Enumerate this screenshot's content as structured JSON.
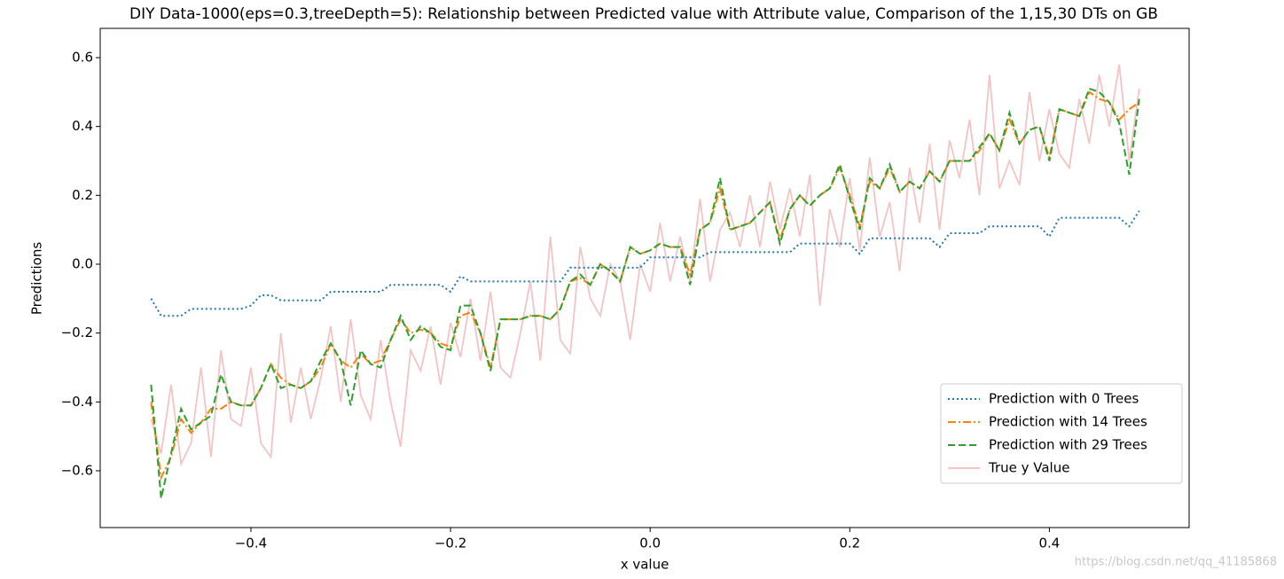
{
  "chart_data": {
    "type": "line",
    "title": "DIY Data-1000(eps=0.3,treeDepth=5): Relationship between Predicted value with Attribute value, Comparison of the 1,15,30 DTs on GB",
    "xlabel": "x value",
    "ylabel": "Predictions",
    "watermark": "https://blog.csdn.net/qq_41185868",
    "legend": "lower right",
    "xlim": [
      -0.551,
      0.54
    ],
    "ylim": [
      -0.765,
      0.685
    ],
    "xticks": [
      {
        "value": -0.4,
        "label": "−0.4"
      },
      {
        "value": -0.2,
        "label": "−0.2"
      },
      {
        "value": 0.0,
        "label": "0.0"
      },
      0.2,
      0.4
    ],
    "yticks": [
      {
        "value": -0.6,
        "label": "−0.6"
      },
      {
        "value": -0.4,
        "label": "−0.4"
      },
      {
        "value": -0.2,
        "label": "−0.2"
      },
      {
        "value": 0.0,
        "label": "0.0"
      },
      0.2,
      0.4,
      0.6
    ],
    "x": [
      -0.5,
      -0.49,
      -0.48,
      -0.47,
      -0.46,
      -0.45,
      -0.44,
      -0.43,
      -0.42,
      -0.41,
      -0.4,
      -0.39,
      -0.38,
      -0.37,
      -0.36,
      -0.35,
      -0.34,
      -0.33,
      -0.32,
      -0.31,
      -0.3,
      -0.29,
      -0.28,
      -0.27,
      -0.26,
      -0.25,
      -0.24,
      -0.23,
      -0.22,
      -0.21,
      -0.2,
      -0.19,
      -0.18,
      -0.17,
      -0.16,
      -0.15,
      -0.14,
      -0.13,
      -0.12,
      -0.11,
      -0.1,
      -0.09,
      -0.08,
      -0.07,
      -0.06,
      -0.05,
      -0.04,
      -0.03,
      -0.02,
      -0.01,
      0.0,
      0.01,
      0.02,
      0.03,
      0.04,
      0.05,
      0.06,
      0.07,
      0.08,
      0.09,
      0.1,
      0.11,
      0.12,
      0.13,
      0.14,
      0.15,
      0.16,
      0.17,
      0.18,
      0.19,
      0.2,
      0.21,
      0.22,
      0.23,
      0.24,
      0.25,
      0.26,
      0.27,
      0.28,
      0.29,
      0.3,
      0.31,
      0.32,
      0.33,
      0.34,
      0.35,
      0.36,
      0.37,
      0.38,
      0.39,
      0.4,
      0.41,
      0.42,
      0.43,
      0.44,
      0.45,
      0.46,
      0.47,
      0.48,
      0.49
    ],
    "series": [
      {
        "name": "Prediction with 0 Trees",
        "color": "#1f77b4",
        "linestyle": "dotted",
        "values": [
          -0.1,
          -0.15,
          -0.15,
          -0.15,
          -0.13,
          -0.13,
          -0.13,
          -0.13,
          -0.13,
          -0.13,
          -0.12,
          -0.09,
          -0.09,
          -0.105,
          -0.105,
          -0.105,
          -0.105,
          -0.105,
          -0.08,
          -0.08,
          -0.08,
          -0.08,
          -0.08,
          -0.08,
          -0.06,
          -0.06,
          -0.06,
          -0.06,
          -0.06,
          -0.06,
          -0.08,
          -0.035,
          -0.05,
          -0.05,
          -0.05,
          -0.05,
          -0.05,
          -0.05,
          -0.05,
          -0.05,
          -0.05,
          -0.05,
          -0.01,
          -0.01,
          -0.01,
          -0.01,
          -0.01,
          -0.01,
          -0.01,
          -0.01,
          0.02,
          0.02,
          0.02,
          0.02,
          0.02,
          0.02,
          0.035,
          0.035,
          0.035,
          0.035,
          0.035,
          0.035,
          0.035,
          0.035,
          0.035,
          0.06,
          0.06,
          0.06,
          0.06,
          0.06,
          0.06,
          0.03,
          0.075,
          0.075,
          0.075,
          0.075,
          0.075,
          0.075,
          0.075,
          0.05,
          0.09,
          0.09,
          0.09,
          0.09,
          0.11,
          0.11,
          0.11,
          0.11,
          0.11,
          0.11,
          0.08,
          0.135,
          0.135,
          0.135,
          0.135,
          0.135,
          0.135,
          0.135,
          0.11,
          0.155
        ]
      },
      {
        "name": "Prediction with 14 Trees",
        "color": "#ff7f0e",
        "linestyle": "dashdot",
        "values": [
          -0.4,
          -0.62,
          -0.56,
          -0.45,
          -0.49,
          -0.46,
          -0.42,
          -0.42,
          -0.4,
          -0.41,
          -0.41,
          -0.36,
          -0.29,
          -0.33,
          -0.35,
          -0.36,
          -0.34,
          -0.3,
          -0.23,
          -0.28,
          -0.3,
          -0.26,
          -0.29,
          -0.28,
          -0.22,
          -0.16,
          -0.2,
          -0.19,
          -0.2,
          -0.23,
          -0.24,
          -0.15,
          -0.14,
          -0.2,
          -0.3,
          -0.16,
          -0.16,
          -0.16,
          -0.15,
          -0.15,
          -0.16,
          -0.13,
          -0.05,
          -0.04,
          -0.06,
          0.0,
          -0.02,
          -0.05,
          0.05,
          0.03,
          0.04,
          0.06,
          0.05,
          0.05,
          -0.03,
          0.1,
          0.12,
          0.22,
          0.1,
          0.11,
          0.12,
          0.15,
          0.18,
          0.07,
          0.16,
          0.2,
          0.17,
          0.2,
          0.22,
          0.28,
          0.2,
          0.11,
          0.24,
          0.22,
          0.28,
          0.21,
          0.24,
          0.22,
          0.27,
          0.24,
          0.3,
          0.3,
          0.3,
          0.33,
          0.38,
          0.33,
          0.42,
          0.35,
          0.39,
          0.4,
          0.31,
          0.45,
          0.44,
          0.43,
          0.5,
          0.48,
          0.47,
          0.42,
          0.45,
          0.47
        ]
      },
      {
        "name": "Prediction with 29 Trees",
        "color": "#2ca02c",
        "linestyle": "dashed",
        "values": [
          -0.35,
          -0.68,
          -0.55,
          -0.42,
          -0.48,
          -0.46,
          -0.44,
          -0.32,
          -0.4,
          -0.41,
          -0.41,
          -0.36,
          -0.29,
          -0.36,
          -0.35,
          -0.36,
          -0.34,
          -0.28,
          -0.23,
          -0.28,
          -0.41,
          -0.25,
          -0.29,
          -0.3,
          -0.22,
          -0.15,
          -0.22,
          -0.18,
          -0.2,
          -0.24,
          -0.25,
          -0.12,
          -0.12,
          -0.2,
          -0.31,
          -0.16,
          -0.16,
          -0.16,
          -0.15,
          -0.15,
          -0.16,
          -0.13,
          -0.05,
          -0.03,
          -0.06,
          0.0,
          -0.02,
          -0.05,
          0.05,
          0.03,
          0.04,
          0.06,
          0.05,
          0.05,
          -0.06,
          0.1,
          0.12,
          0.25,
          0.1,
          0.11,
          0.12,
          0.15,
          0.18,
          0.06,
          0.16,
          0.2,
          0.17,
          0.2,
          0.22,
          0.29,
          0.19,
          0.1,
          0.25,
          0.22,
          0.29,
          0.21,
          0.24,
          0.22,
          0.27,
          0.24,
          0.3,
          0.3,
          0.3,
          0.34,
          0.38,
          0.33,
          0.44,
          0.35,
          0.39,
          0.4,
          0.3,
          0.45,
          0.44,
          0.43,
          0.51,
          0.5,
          0.47,
          0.41,
          0.26,
          0.48
        ]
      },
      {
        "name": "True y Value",
        "color": "#f4c4c4",
        "linestyle": "solid",
        "values": [
          -0.45,
          -0.55,
          -0.35,
          -0.58,
          -0.52,
          -0.3,
          -0.56,
          -0.25,
          -0.45,
          -0.47,
          -0.3,
          -0.52,
          -0.56,
          -0.2,
          -0.46,
          -0.3,
          -0.45,
          -0.33,
          -0.18,
          -0.4,
          -0.16,
          -0.38,
          -0.45,
          -0.22,
          -0.4,
          -0.53,
          -0.25,
          -0.31,
          -0.18,
          -0.35,
          -0.17,
          -0.27,
          -0.1,
          -0.28,
          -0.08,
          -0.3,
          -0.33,
          -0.2,
          -0.05,
          -0.28,
          0.08,
          -0.22,
          -0.26,
          0.05,
          -0.1,
          -0.15,
          0.0,
          -0.05,
          -0.22,
          0.0,
          -0.08,
          0.12,
          -0.05,
          0.08,
          -0.05,
          0.19,
          -0.05,
          0.1,
          0.15,
          0.05,
          0.2,
          0.05,
          0.24,
          0.1,
          0.22,
          0.08,
          0.26,
          -0.12,
          0.16,
          0.05,
          0.25,
          0.04,
          0.31,
          0.08,
          0.18,
          -0.02,
          0.28,
          0.12,
          0.35,
          0.1,
          0.36,
          0.25,
          0.42,
          0.2,
          0.55,
          0.22,
          0.3,
          0.23,
          0.5,
          0.3,
          0.45,
          0.32,
          0.28,
          0.48,
          0.35,
          0.55,
          0.4,
          0.58,
          0.3,
          0.51
        ]
      }
    ]
  }
}
